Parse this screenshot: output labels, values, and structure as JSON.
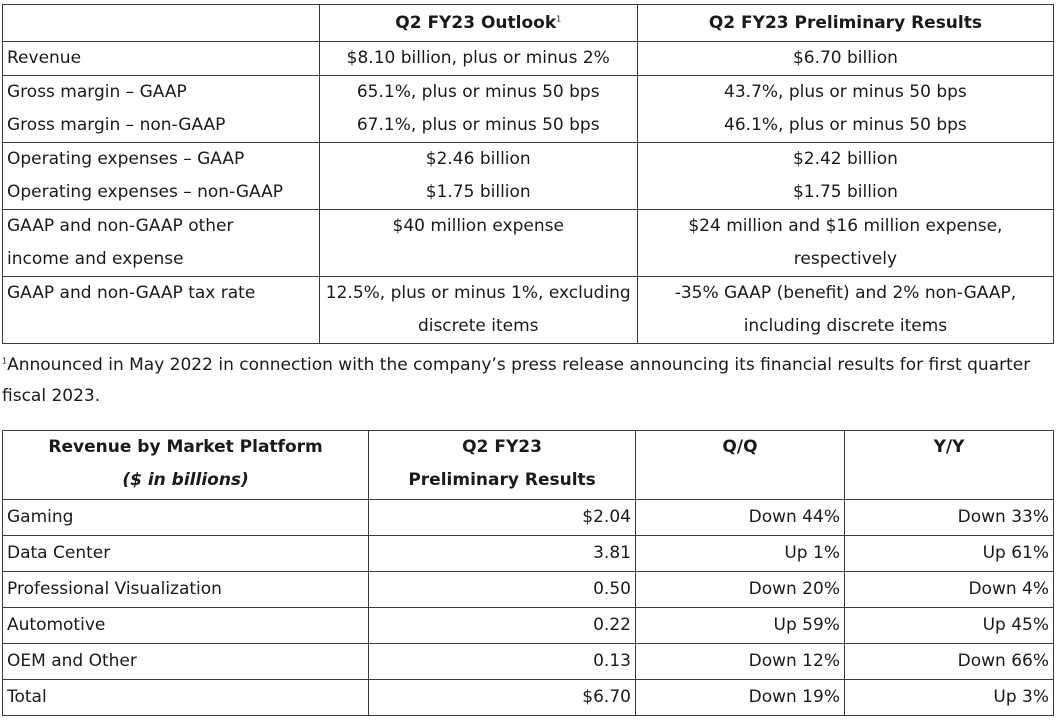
{
  "outlook_table": {
    "header": {
      "col1": "",
      "col2": "Q2 FY23 Outlook",
      "col2_sup": "1",
      "col3": "Q2 FY23 Preliminary Results"
    },
    "revenue": {
      "label": "Revenue",
      "outlook": "$8.10 billion, plus or minus 2%",
      "results": "$6.70 billion"
    },
    "gross_margin": {
      "label_gaap": "Gross margin – GAAP",
      "label_nongaap": "Gross margin – non-GAAP",
      "outlook_gaap": "65.1%, plus or minus 50 bps",
      "outlook_nongaap": "67.1%, plus or minus 50 bps",
      "results_gaap": "43.7%, plus or minus 50 bps",
      "results_nongaap": "46.1%, plus or minus 50 bps"
    },
    "opex": {
      "label_gaap": "Operating expenses – GAAP",
      "label_nongaap": "Operating expenses – non-GAAP",
      "outlook_gaap": "$2.46 billion",
      "outlook_nongaap": "$1.75 billion",
      "results_gaap": "$2.42 billion",
      "results_nongaap": "$1.75 billion"
    },
    "other_income": {
      "label_line1": "GAAP and non-GAAP other",
      "label_line2": "income and expense",
      "outlook": "$40 million expense",
      "results_line1": "$24 million and $16 million expense,",
      "results_line2": "respectively"
    },
    "tax_rate": {
      "label": "GAAP and non-GAAP tax rate",
      "outlook_line1": "12.5%, plus or minus 1%, excluding",
      "outlook_line2": "discrete items",
      "results_line1": "-35% GAAP (benefit) and 2% non-GAAP,",
      "results_line2": "including discrete items"
    }
  },
  "footnote": {
    "marker": "1",
    "text": "Announced in May 2022 in connection with the company’s press release announcing its financial results for first quarter fiscal 2023."
  },
  "platform_table": {
    "header": {
      "col1_line1": "Revenue by Market Platform",
      "col1_line2": "($ in billions)",
      "col2_line1": "Q2 FY23",
      "col2_line2": "Preliminary Results",
      "col3": "Q/Q",
      "col4": "Y/Y"
    },
    "rows": [
      {
        "platform": "Gaming",
        "results": "$2.04",
        "qq": "Down 44%",
        "yy": "Down 33%"
      },
      {
        "platform": "Data Center",
        "results": "3.81",
        "qq": "Up 1%",
        "yy": "Up 61%"
      },
      {
        "platform": "Professional Visualization",
        "results": "0.50",
        "qq": "Down 20%",
        "yy": "Down 4%"
      },
      {
        "platform": "Automotive",
        "results": "0.22",
        "qq": "Up 59%",
        "yy": "Up 45%"
      },
      {
        "platform": "OEM and Other",
        "results": "0.13",
        "qq": "Down 12%",
        "yy": "Down 66%"
      },
      {
        "platform": "Total",
        "results": "$6.70",
        "qq": "Down 19%",
        "yy": "Up 3%"
      }
    ]
  }
}
